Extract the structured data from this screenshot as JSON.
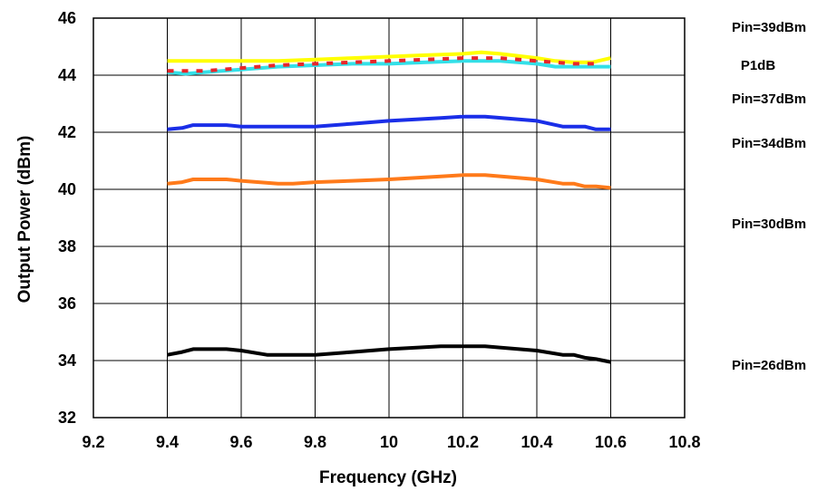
{
  "chart_data": {
    "type": "line",
    "title": "",
    "xlabel": "Frequency (GHz)",
    "ylabel": "Output Power (dBm)",
    "xlim": [
      9.2,
      10.8
    ],
    "ylim": [
      32,
      46
    ],
    "xticks": [
      "9.2",
      "9.4",
      "9.6",
      "9.8",
      "10",
      "10.2",
      "10.4",
      "10.6",
      "10.8"
    ],
    "yticks": [
      "32",
      "34",
      "36",
      "38",
      "40",
      "42",
      "44",
      "46"
    ],
    "grid": true,
    "series": [
      {
        "name": "Pin=39dBm",
        "color": "#ffff00",
        "style": "solid",
        "x": [
          9.4,
          9.5,
          9.6,
          9.7,
          9.8,
          9.9,
          10.0,
          10.1,
          10.2,
          10.25,
          10.3,
          10.4,
          10.45,
          10.5,
          10.55,
          10.6
        ],
        "y": [
          44.5,
          44.5,
          44.5,
          44.5,
          44.55,
          44.6,
          44.65,
          44.7,
          44.75,
          44.8,
          44.75,
          44.6,
          44.5,
          44.45,
          44.45,
          44.6
        ]
      },
      {
        "name": "P1dB",
        "color": "#e8262b",
        "style": "dashed",
        "x": [
          9.4,
          9.5,
          9.6,
          9.7,
          9.8,
          9.9,
          10.0,
          10.1,
          10.2,
          10.3,
          10.4,
          10.5,
          10.57
        ],
        "y": [
          44.15,
          44.15,
          44.25,
          44.35,
          44.4,
          44.45,
          44.5,
          44.55,
          44.6,
          44.6,
          44.5,
          44.4,
          44.4
        ]
      },
      {
        "name": "Pin=37dBm",
        "color": "#33e0e8",
        "style": "solid",
        "x": [
          9.4,
          9.45,
          9.5,
          9.6,
          9.7,
          9.8,
          9.9,
          10.0,
          10.1,
          10.2,
          10.3,
          10.4,
          10.45,
          10.5,
          10.55,
          10.6
        ],
        "y": [
          44.1,
          44.05,
          44.1,
          44.2,
          44.3,
          44.35,
          44.4,
          44.4,
          44.45,
          44.5,
          44.5,
          44.4,
          44.3,
          44.3,
          44.3,
          44.3
        ]
      },
      {
        "name": "Pin=34dBm",
        "color": "#1a2ee8",
        "style": "solid",
        "x": [
          9.4,
          9.44,
          9.47,
          9.56,
          9.6,
          9.7,
          9.74,
          9.8,
          9.9,
          10.0,
          10.14,
          10.2,
          10.26,
          10.4,
          10.47,
          10.53,
          10.56,
          10.6
        ],
        "y": [
          42.1,
          42.15,
          42.25,
          42.25,
          42.2,
          42.2,
          42.2,
          42.2,
          42.3,
          42.4,
          42.5,
          42.55,
          42.55,
          42.4,
          42.2,
          42.2,
          42.1,
          42.1
        ]
      },
      {
        "name": "Pin=30dBm",
        "color": "#ff7a1a",
        "style": "solid",
        "x": [
          9.4,
          9.44,
          9.47,
          9.56,
          9.6,
          9.7,
          9.74,
          9.8,
          9.9,
          10.0,
          10.14,
          10.2,
          10.26,
          10.4,
          10.47,
          10.5,
          10.53,
          10.56,
          10.6
        ],
        "y": [
          40.2,
          40.25,
          40.35,
          40.35,
          40.3,
          40.2,
          40.2,
          40.25,
          40.3,
          40.35,
          40.45,
          40.5,
          40.5,
          40.35,
          40.2,
          40.2,
          40.1,
          40.1,
          40.05
        ]
      },
      {
        "name": "Pin=26dBm",
        "color": "#000000",
        "style": "solid",
        "x": [
          9.4,
          9.44,
          9.47,
          9.56,
          9.6,
          9.67,
          9.8,
          9.9,
          10.0,
          10.14,
          10.26,
          10.4,
          10.47,
          10.5,
          10.53,
          10.56,
          10.6
        ],
        "y": [
          34.2,
          34.3,
          34.4,
          34.4,
          34.35,
          34.2,
          34.2,
          34.3,
          34.4,
          34.5,
          34.5,
          34.35,
          34.2,
          34.2,
          34.1,
          34.05,
          33.95
        ]
      }
    ],
    "series_labels_order": [
      "Pin=39dBm",
      "P1dB",
      "Pin=37dBm",
      "Pin=34dBm",
      "Pin=30dBm",
      "Pin=26dBm"
    ]
  }
}
